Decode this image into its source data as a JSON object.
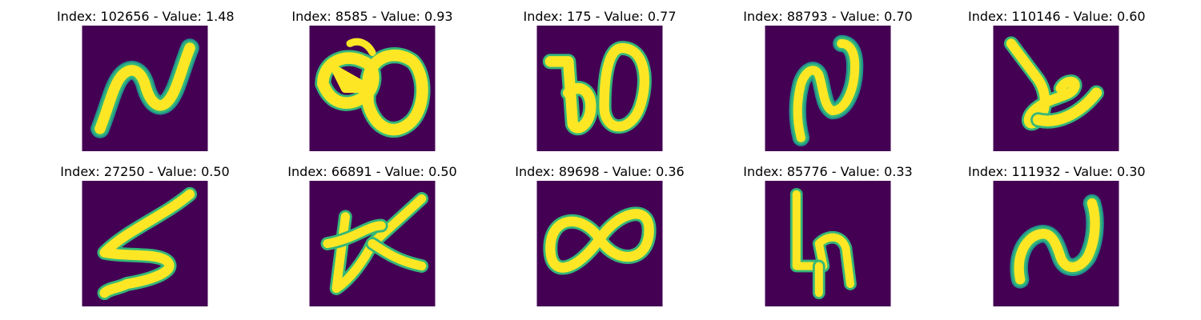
{
  "colors": {
    "background": "#440154",
    "stroke_core": "#fde725",
    "stroke_edge": "#35b779",
    "stroke_mid": "#21918c"
  },
  "panels": [
    {
      "title": "Index: 102656 - Value: 1.48",
      "glyph": "tilde-shape"
    },
    {
      "title": "Index: 8585 - Value: 0.93",
      "glyph": "double-loop-blob"
    },
    {
      "title": "Index: 175 - Value: 0.77",
      "glyph": "b-and-o"
    },
    {
      "title": "Index: 88793 - Value: 0.70",
      "glyph": "n-shape"
    },
    {
      "title": "Index: 110146 - Value: 0.60",
      "glyph": "cursive-k"
    },
    {
      "title": "Index: 27250 - Value: 0.50",
      "glyph": "zigzag-s"
    },
    {
      "title": "Index: 66891 - Value: 0.50",
      "glyph": "crossed-k"
    },
    {
      "title": "Index: 89698 - Value: 0.36",
      "glyph": "infinity"
    },
    {
      "title": "Index: 85776 - Value: 0.33",
      "glyph": "h-shape"
    },
    {
      "title": "Index: 111932 - Value: 0.30",
      "glyph": "n-shape-2"
    }
  ]
}
